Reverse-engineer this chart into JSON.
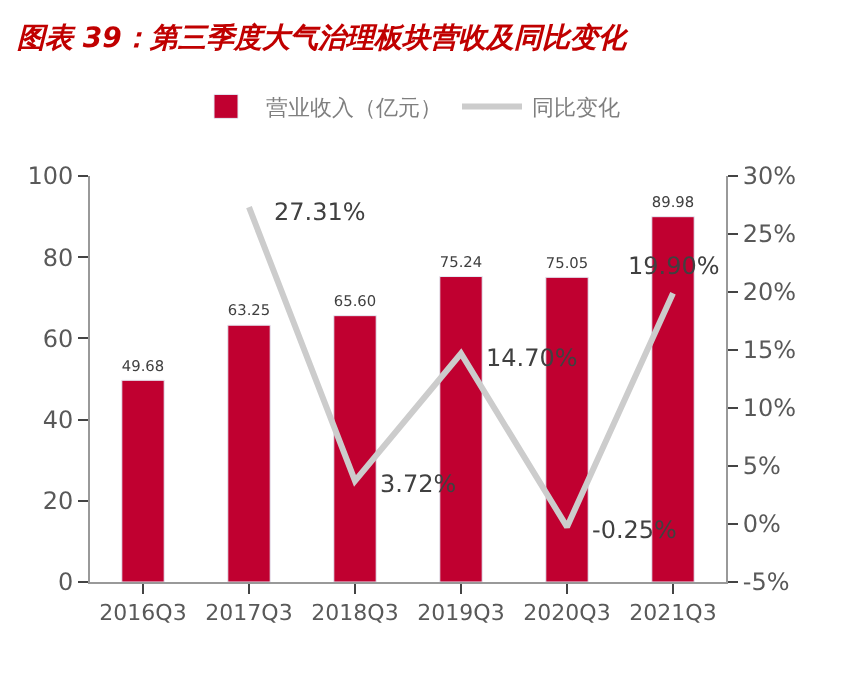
{
  "chart_data": {
    "type": "bar",
    "title": "图表 39：第三季度大气治理板块营收及同比变化",
    "categories": [
      "2016Q3",
      "2017Q3",
      "2018Q3",
      "2019Q3",
      "2020Q3",
      "2021Q3"
    ],
    "series": [
      {
        "name": "营业收入（亿元）",
        "color": "#c00030",
        "values": [
          49.68,
          63.25,
          65.6,
          75.24,
          75.05,
          89.98
        ],
        "value_labels": [
          "49.68",
          "63.25",
          "65.60",
          "75.24",
          "75.05",
          "89.98"
        ]
      },
      {
        "name": "同比变化",
        "type": "line",
        "axis": "y2",
        "color": "#cccccc",
        "values": [
          null,
          27.31,
          3.72,
          14.7,
          -0.25,
          19.9
        ],
        "value_labels": [
          null,
          "27.31%",
          "3.72%",
          "14.70%",
          "-0.25%",
          "19.90%"
        ]
      }
    ],
    "ylim": [
      0,
      100
    ],
    "yticks": [
      0,
      20,
      40,
      60,
      80,
      100
    ],
    "y2lim": [
      -5,
      30
    ],
    "y2ticks": [
      {
        "value": -5,
        "label": "-5%"
      },
      {
        "value": 0,
        "label": "0%"
      },
      {
        "value": 5,
        "label": "5%"
      },
      {
        "value": 10,
        "label": "10%"
      },
      {
        "value": 15,
        "label": "15%"
      },
      {
        "value": 20,
        "label": "20%"
      },
      {
        "value": 25,
        "label": "25%"
      },
      {
        "value": 30,
        "label": "30%"
      }
    ],
    "legend": "top",
    "marker": "none",
    "line_style": "solid"
  }
}
